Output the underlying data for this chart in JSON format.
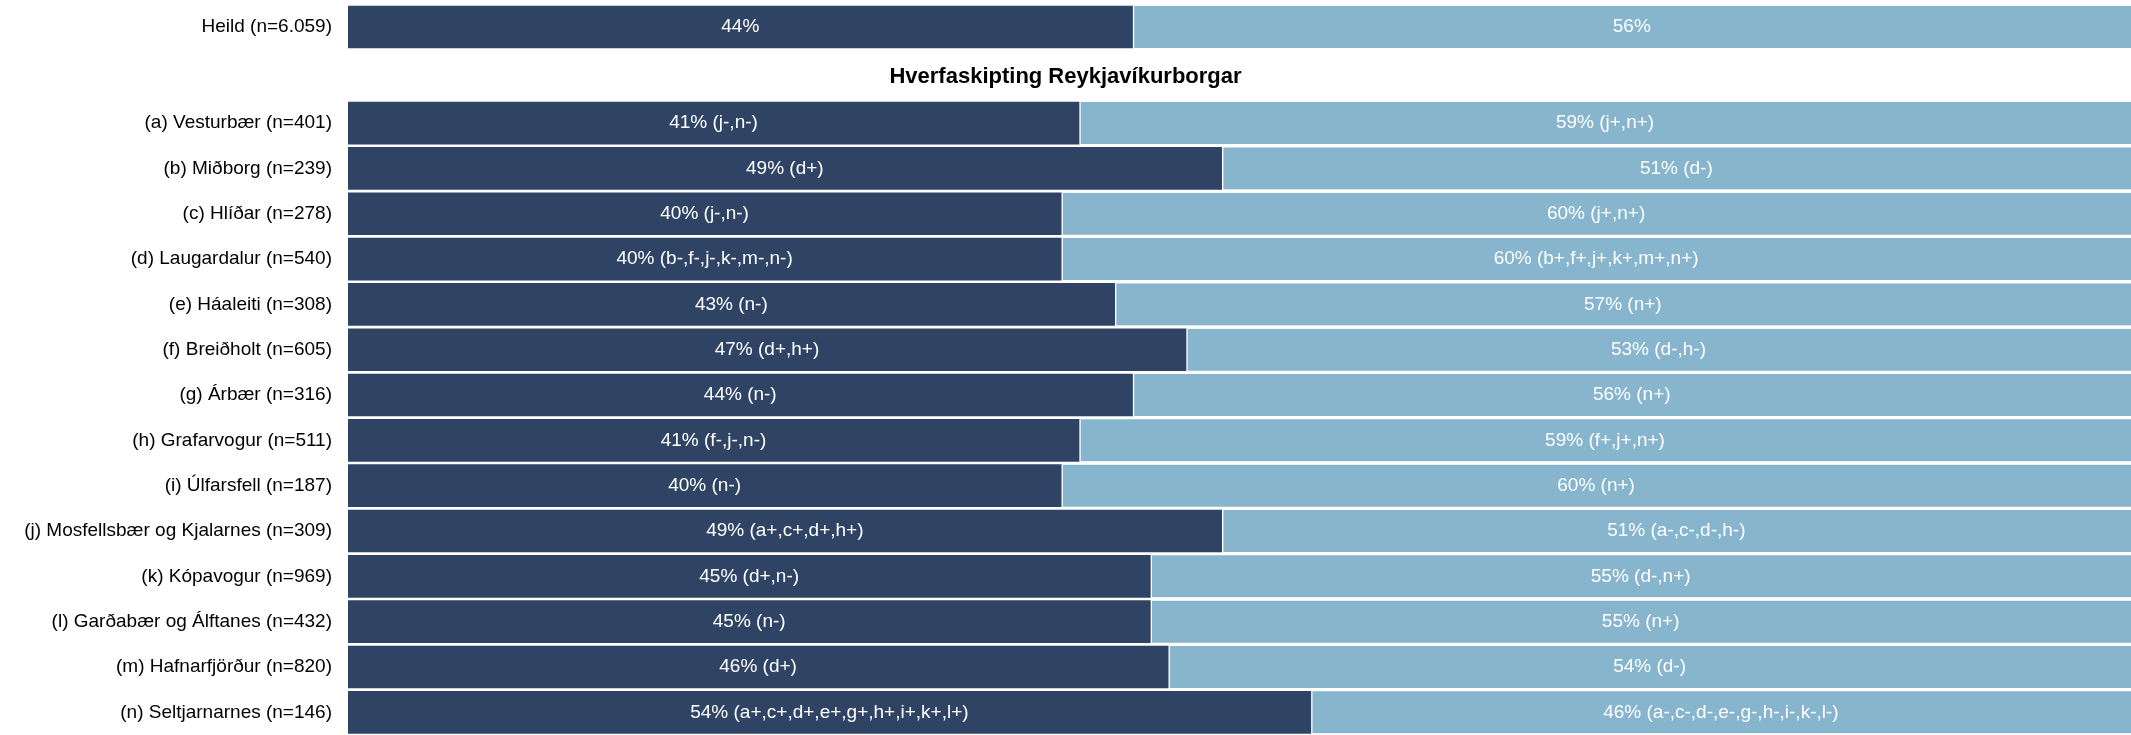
{
  "chart_data": [
    {
      "type": "bar",
      "orientation": "horizontal",
      "stacked": true,
      "categories": [
        "Heild (n=6.059)"
      ],
      "xlim": [
        0,
        100
      ],
      "tick_labels": "y",
      "series": [
        {
          "color": "#2f4465",
          "values": [
            44
          ],
          "value_labels": [
            "44%"
          ]
        },
        {
          "color": "#86b5cd",
          "values": [
            56
          ],
          "value_labels": [
            "56%"
          ]
        }
      ]
    },
    {
      "type": "bar",
      "orientation": "horizontal",
      "stacked": true,
      "title": "Hverfaskipting Reykjavíkurborgar",
      "xlim": [
        0,
        100
      ],
      "tick_labels": "y",
      "categories": [
        "(a) Vesturbær (n=401)",
        "(b) Miðborg (n=239)",
        "(c) Hlíðar (n=278)",
        "(d) Laugardalur (n=540)",
        "(e) Háaleiti (n=308)",
        "(f) Breiðholt (n=605)",
        "(g) Árbær (n=316)",
        "(h) Grafarvogur (n=511)",
        "(i) Úlfarsfell (n=187)",
        "(j) Mosfellsbær og Kjalarnes (n=309)",
        "(k) Kópavogur (n=969)",
        "(l) Garðabær og Álftanes (n=432)",
        "(m) Hafnarfjörður (n=820)",
        "(n) Seltjarnarnes (n=146)"
      ],
      "series": [
        {
          "color": "#2f4465",
          "values": [
            41,
            49,
            40,
            40,
            43,
            47,
            44,
            41,
            40,
            49,
            45,
            45,
            46,
            54
          ],
          "value_labels": [
            "41% (j-,n-)",
            "49% (d+)",
            "40% (j-,n-)",
            "40% (b-,f-,j-,k-,m-,n-)",
            "43% (n-)",
            "47% (d+,h+)",
            "44% (n-)",
            "41% (f-,j-,n-)",
            "40% (n-)",
            "49% (a+,c+,d+,h+)",
            "45% (d+,n-)",
            "45% (n-)",
            "46% (d+)",
            "54% (a+,c+,d+,e+,g+,h+,i+,k+,l+)"
          ]
        },
        {
          "color": "#86b5cd",
          "values": [
            59,
            51,
            60,
            60,
            57,
            53,
            56,
            59,
            60,
            51,
            55,
            55,
            54,
            46
          ],
          "value_labels": [
            "59% (j+,n+)",
            "51% (d-)",
            "60% (j+,n+)",
            "60% (b+,f+,j+,k+,m+,n+)",
            "57% (n+)",
            "53% (d-,h-)",
            "56% (n+)",
            "59% (f+,j+,n+)",
            "60% (n+)",
            "51% (a-,c-,d-,h-)",
            "55% (d-,n+)",
            "55% (n+)",
            "54% (d-)",
            "46% (a-,c-,d-,e-,g-,h-,i-,k-,l-)"
          ]
        }
      ]
    }
  ]
}
